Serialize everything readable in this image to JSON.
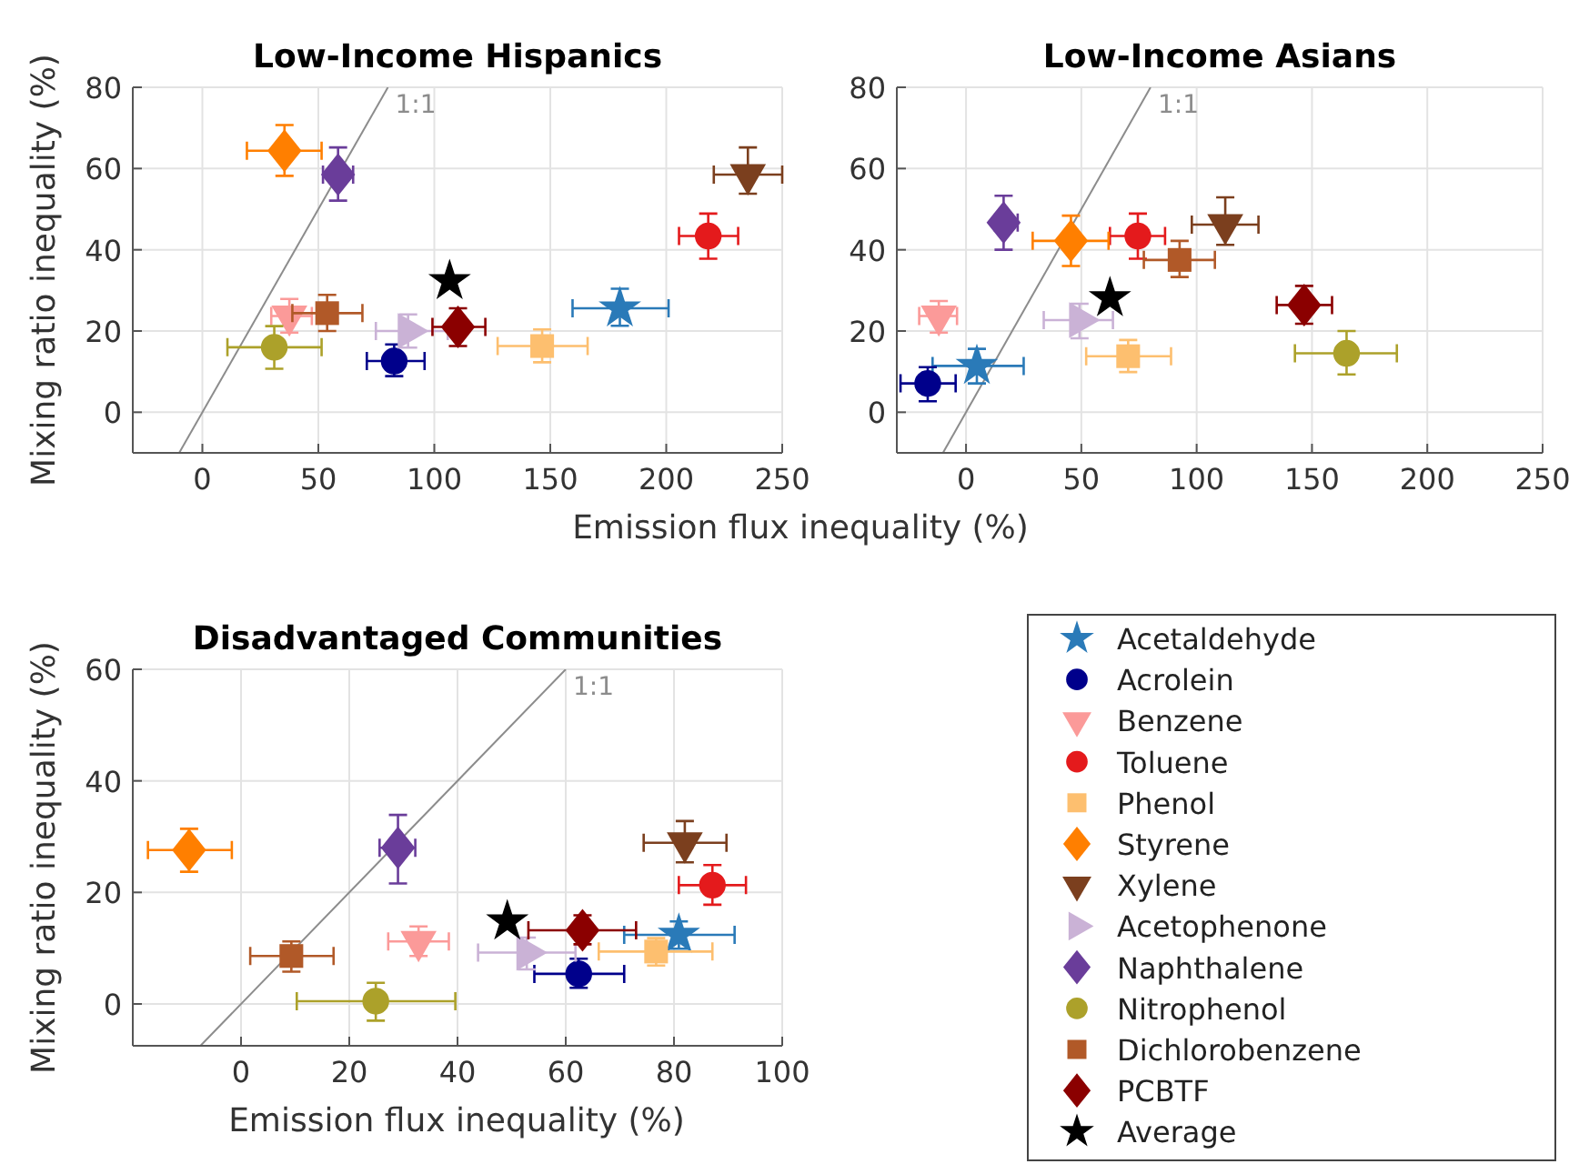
{
  "chart_data": [
    {
      "type": "scatter",
      "title": "Low-Income Hispanics",
      "xlabel": "Emission flux inequality (%)",
      "ylabel": "Mixing ratio inequality (%)",
      "xlim": [
        -30,
        250
      ],
      "ylim": [
        -10,
        80
      ],
      "xticks": [
        0,
        50,
        100,
        150,
        200,
        250
      ],
      "yticks": [
        0,
        20,
        40,
        60,
        80
      ],
      "grid": true,
      "series": [
        {
          "type": "line",
          "name": "1:1",
          "color": "#8c8c8c",
          "x": [
            -10,
            80
          ],
          "values": [
            -10,
            80
          ]
        },
        {
          "color": "#2a7ab8",
          "marker": "star",
          "x": [
            180
          ],
          "values": [
            25.6
          ],
          "xerrors": [
            [
              159.6,
              201
            ]
          ],
          "errors": [
            [
              21.3,
              30.4
            ]
          ]
        },
        {
          "color": "#00008b",
          "marker": "circle",
          "x": [
            82.7
          ],
          "values": [
            12.6
          ],
          "xerrors": [
            [
              70.9,
              95.8
            ]
          ],
          "errors": [
            [
              8.9,
              16.7
            ]
          ]
        },
        {
          "color": "#fb9a99",
          "marker": "triangle-down",
          "x": [
            37.5
          ],
          "values": [
            23.7
          ],
          "xerrors": [
            [
              29.7,
              47.2
            ]
          ],
          "errors": [
            [
              19.6,
              27.9
            ]
          ]
        },
        {
          "color": "#e41a1c",
          "marker": "circle",
          "x": [
            218.1
          ],
          "values": [
            43.4
          ],
          "xerrors": [
            [
              205.5,
              231
            ]
          ],
          "errors": [
            [
              37.8,
              48.9
            ]
          ]
        },
        {
          "color": "#fdbf6f",
          "marker": "square",
          "x": [
            146.5
          ],
          "values": [
            16.3
          ],
          "xerrors": [
            [
              127.3,
              166.1
            ]
          ],
          "errors": [
            [
              12.3,
              20.4
            ]
          ]
        },
        {
          "color": "#ff7f00",
          "marker": "diamond",
          "x": [
            35.4
          ],
          "values": [
            64.4
          ],
          "xerrors": [
            [
              19.2,
              51.4
            ]
          ],
          "errors": [
            [
              58.2,
              70.7
            ]
          ]
        },
        {
          "color": "#7b3f1e",
          "marker": "triangle-down",
          "x": [
            235.2
          ],
          "values": [
            58.5
          ],
          "xerrors": [
            [
              220.5,
              250
            ]
          ],
          "errors": [
            [
              53.8,
              65.2
            ]
          ]
        },
        {
          "color": "#cab2d6",
          "marker": "triangle-right",
          "x": [
            88.7
          ],
          "values": [
            20
          ],
          "xerrors": [
            [
              74.8,
              105.8
            ]
          ],
          "errors": [
            [
              15.9,
              24.1
            ]
          ]
        },
        {
          "color": "#6a3d9a",
          "marker": "diamond",
          "x": [
            58.5
          ],
          "values": [
            58.5
          ],
          "xerrors": [
            [
              52,
              65
            ]
          ],
          "errors": [
            [
              52.1,
              65.2
            ]
          ]
        },
        {
          "color": "#aca12a",
          "marker": "circle",
          "x": [
            31
          ],
          "values": [
            16
          ],
          "xerrors": [
            [
              10.8,
              51.4
            ]
          ],
          "errors": [
            [
              10.7,
              21.2
            ]
          ]
        },
        {
          "color": "#b15928",
          "marker": "square",
          "x": [
            53.8
          ],
          "values": [
            24.4
          ],
          "xerrors": [
            [
              38.8,
              69
            ]
          ],
          "errors": [
            [
              20,
              28.9
            ]
          ]
        },
        {
          "color": "#8b0000",
          "marker": "diamond",
          "x": [
            110.2
          ],
          "values": [
            21
          ],
          "xerrors": [
            [
              99.2,
              122
            ]
          ],
          "errors": [
            [
              16.3,
              25.6
            ]
          ]
        },
        {
          "color": "#000000",
          "marker": "star",
          "x": [
            106.6
          ],
          "values": [
            32.3
          ]
        }
      ]
    },
    {
      "type": "scatter",
      "title": "Low-Income Asians",
      "xlim": [
        -30,
        250
      ],
      "ylim": [
        -10,
        80
      ],
      "xticks": [
        0,
        50,
        100,
        150,
        200,
        250
      ],
      "yticks": [
        0,
        20,
        40,
        60,
        80
      ],
      "grid": true,
      "series": [
        {
          "type": "line",
          "name": "1:1",
          "color": "#8c8c8c",
          "x": [
            -10,
            80
          ],
          "values": [
            -10,
            80
          ]
        },
        {
          "color": "#2a7ab8",
          "marker": "star",
          "x": [
            4.7
          ],
          "values": [
            11.4
          ],
          "xerrors": [
            [
              -14.5,
              25
            ]
          ],
          "errors": [
            [
              7.1,
              15.6
            ]
          ]
        },
        {
          "color": "#00008b",
          "marker": "circle",
          "x": [
            -16.6
          ],
          "values": [
            7.1
          ],
          "xerrors": [
            [
              -28.4,
              -4.5
            ]
          ],
          "errors": [
            [
              2.7,
              11.1
            ]
          ]
        },
        {
          "color": "#fb9a99",
          "marker": "triangle-down",
          "x": [
            -11.8
          ],
          "values": [
            23.7
          ],
          "xerrors": [
            [
              -20.3,
              -3.9
            ]
          ],
          "errors": [
            [
              19.6,
              27.4
            ]
          ]
        },
        {
          "color": "#e41a1c",
          "marker": "circle",
          "x": [
            74.5
          ],
          "values": [
            43.4
          ],
          "xerrors": [
            [
              62.4,
              86.3
            ]
          ],
          "errors": [
            [
              37.8,
              48.9
            ]
          ]
        },
        {
          "color": "#fdbf6f",
          "marker": "square",
          "x": [
            70.3
          ],
          "values": [
            13.8
          ],
          "xerrors": [
            [
              52.1,
              88.9
            ]
          ],
          "errors": [
            [
              9.9,
              17.8
            ]
          ]
        },
        {
          "color": "#ff7f00",
          "marker": "diamond",
          "x": [
            45.5
          ],
          "values": [
            42.2
          ],
          "xerrors": [
            [
              28.9,
              61.8
            ]
          ],
          "errors": [
            [
              36,
              48.4
            ]
          ]
        },
        {
          "color": "#7b3f1e",
          "marker": "triangle-down",
          "x": [
            112.4
          ],
          "values": [
            46.2
          ],
          "xerrors": [
            [
              97.9,
              126.8
            ]
          ],
          "errors": [
            [
              41.2,
              52.9
            ]
          ]
        },
        {
          "color": "#cab2d6",
          "marker": "triangle-right",
          "x": [
            49.2
          ],
          "values": [
            22.7
          ],
          "xerrors": [
            [
              33.7,
              63.7
            ]
          ],
          "errors": [
            [
              18.2,
              26.7
            ]
          ]
        },
        {
          "color": "#6a3d9a",
          "marker": "diamond",
          "x": [
            16.3
          ],
          "values": [
            46.7
          ],
          "xerrors": [
            [
              12.6,
              22.4
            ]
          ],
          "errors": [
            [
              40,
              53.3
            ]
          ]
        },
        {
          "color": "#aca12a",
          "marker": "circle",
          "x": [
            165
          ],
          "values": [
            14.5
          ],
          "xerrors": [
            [
              142.6,
              186.8
            ]
          ],
          "errors": [
            [
              9.3,
              20
            ]
          ]
        },
        {
          "color": "#b15928",
          "marker": "square",
          "x": [
            92.6
          ],
          "values": [
            37.5
          ],
          "xerrors": [
            [
              77.1,
              107.9
            ]
          ],
          "errors": [
            [
              33.3,
              42.2
            ]
          ]
        },
        {
          "color": "#8b0000",
          "marker": "diamond",
          "x": [
            146.6
          ],
          "values": [
            26.4
          ],
          "xerrors": [
            [
              134.7,
              158.7
            ]
          ],
          "errors": [
            [
              21.8,
              31.1
            ]
          ]
        },
        {
          "color": "#000000",
          "marker": "star",
          "x": [
            62.4
          ],
          "values": [
            28.1
          ]
        }
      ]
    },
    {
      "type": "scatter",
      "title": "Disadvantaged Communities",
      "xlabel": "Emission flux inequality (%)",
      "ylabel": "Mixing ratio inequality (%)",
      "xlim": [
        -20,
        100
      ],
      "ylim": [
        -7.5,
        60
      ],
      "xticks": [
        0,
        20,
        40,
        60,
        80,
        100
      ],
      "yticks": [
        0,
        20,
        40,
        60
      ],
      "grid": true,
      "legend": "right",
      "series": [
        {
          "type": "line",
          "name": "1:1",
          "color": "#8c8c8c",
          "x": [
            -7.5,
            60
          ],
          "values": [
            -7.5,
            60
          ]
        },
        {
          "name": "Acetaldehyde",
          "color": "#2a7ab8",
          "marker": "star",
          "x": [
            80.9
          ],
          "values": [
            12.4
          ],
          "xerrors": [
            [
              70.8,
              91.2
            ]
          ],
          "errors": [
            [
              9.9,
              14.8
            ]
          ]
        },
        {
          "name": "Acrolein",
          "color": "#00008b",
          "marker": "circle",
          "x": [
            62.4
          ],
          "values": [
            5.4
          ],
          "xerrors": [
            [
              54.2,
              70.8
            ]
          ],
          "errors": [
            [
              2.9,
              8.1
            ]
          ]
        },
        {
          "name": "Benzene",
          "color": "#fb9a99",
          "marker": "triangle-down",
          "x": [
            32.8
          ],
          "values": [
            11.2
          ],
          "xerrors": [
            [
              27.2,
              38.4
            ]
          ],
          "errors": [
            [
              8.6,
              13.9
            ]
          ]
        },
        {
          "name": "Toluene",
          "color": "#e41a1c",
          "marker": "circle",
          "x": [
            87.1
          ],
          "values": [
            21.3
          ],
          "xerrors": [
            [
              80.9,
              93.3
            ]
          ],
          "errors": [
            [
              17.8,
              24.9
            ]
          ]
        },
        {
          "name": "Phenol",
          "color": "#fdbf6f",
          "marker": "square",
          "x": [
            76.7
          ],
          "values": [
            9.4
          ],
          "xerrors": [
            [
              66.1,
              87.1
            ]
          ],
          "errors": [
            [
              6.9,
              11.8
            ]
          ]
        },
        {
          "name": "Styrene",
          "color": "#ff7f00",
          "marker": "diamond",
          "x": [
            -9.6
          ],
          "values": [
            27.6
          ],
          "xerrors": [
            [
              -17.2,
              -1.7
            ]
          ],
          "errors": [
            [
              23.7,
              31.4
            ]
          ]
        },
        {
          "name": "Xylene",
          "color": "#7b3f1e",
          "marker": "triangle-down",
          "x": [
            82
          ],
          "values": [
            28.9
          ],
          "xerrors": [
            [
              74.4,
              89.7
            ]
          ],
          "errors": [
            [
              25.4,
              32.8
            ]
          ]
        },
        {
          "name": "Acetophenone",
          "color": "#cab2d6",
          "marker": "triangle-right",
          "x": [
            52.8
          ],
          "values": [
            9.2
          ],
          "xerrors": [
            [
              43.8,
              61.8
            ]
          ],
          "errors": [
            [
              6.2,
              11.9
            ]
          ]
        },
        {
          "name": "Naphthalene",
          "color": "#6a3d9a",
          "marker": "diamond",
          "x": [
            29
          ],
          "values": [
            28
          ],
          "xerrors": [
            [
              25.6,
              32.2
            ]
          ],
          "errors": [
            [
              21.6,
              33.9
            ]
          ]
        },
        {
          "name": "Nitrophenol",
          "color": "#aca12a",
          "marker": "circle",
          "x": [
            24.9
          ],
          "values": [
            0.5
          ],
          "xerrors": [
            [
              10.3,
              39.6
            ]
          ],
          "errors": [
            [
              -3,
              3.8
            ]
          ]
        },
        {
          "name": "Dichlorobenzene",
          "color": "#b15928",
          "marker": "square",
          "x": [
            9.3
          ],
          "values": [
            8.6
          ],
          "xerrors": [
            [
              1.7,
              17.1
            ]
          ],
          "errors": [
            [
              5.8,
              11.2
            ]
          ]
        },
        {
          "name": "PCBTF",
          "color": "#8b0000",
          "marker": "diamond",
          "x": [
            63.1
          ],
          "values": [
            13.2
          ],
          "xerrors": [
            [
              53.1,
              73
            ]
          ],
          "errors": [
            [
              10.7,
              15.9
            ]
          ]
        },
        {
          "name": "Average",
          "color": "#000000",
          "marker": "star",
          "x": [
            49.2
          ],
          "values": [
            14.8
          ]
        }
      ]
    }
  ]
}
